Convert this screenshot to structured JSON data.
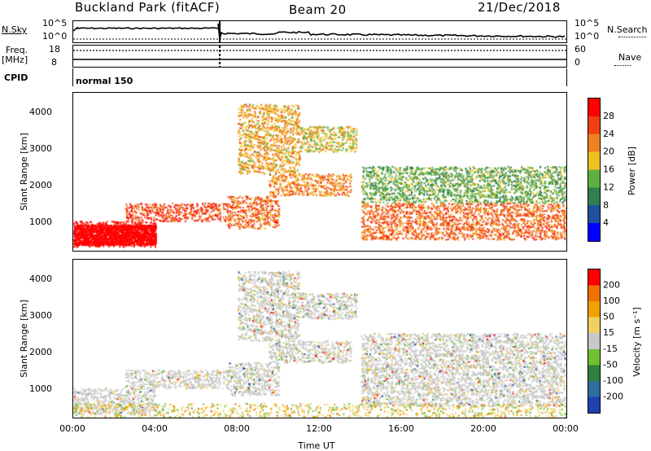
{
  "header": {
    "station": "Buckland Park (fitACF)",
    "beam": "Beam 20",
    "date": "21/Dec/2018"
  },
  "summary_panels": {
    "nsky_label": "N.Sky",
    "nsearch_label": "N.Search",
    "freq_label_top": "Freq.",
    "freq_label_unit": "[MHz]",
    "nave_label": "Nave",
    "cpid_label": "CPID",
    "noise_ticks": [
      "10^5",
      "10^0"
    ],
    "freq_ticks": [
      "18",
      "8"
    ],
    "nave_ticks": [
      "60",
      "0"
    ],
    "cpid_text": "normal 150"
  },
  "colors": {
    "power_scale": [
      "#0000ff",
      "#2050a0",
      "#308050",
      "#60b040",
      "#f0c020",
      "#f08020",
      "#f04010",
      "#ff0000"
    ],
    "velocity_scale": [
      "#2040b0",
      "#2d6fa0",
      "#308040",
      "#70c030",
      "#c8c8c8",
      "#f0d060",
      "#f0a000",
      "#f07000",
      "#ff0000"
    ],
    "ground_scatter": "#c8c8c8"
  },
  "chart_data": [
    {
      "type": "heatmap",
      "name": "power",
      "ylabel": "Slant Range [km]",
      "xlabel": "",
      "ylim": [
        180,
        4500
      ],
      "xlim": [
        0,
        24
      ],
      "x_ticks": [],
      "y_ticks": [
        1000,
        2000,
        3000,
        4000
      ],
      "colorbar": {
        "label": "Power [dB]",
        "ticks": [
          "4",
          "8",
          "12",
          "16",
          "20",
          "24",
          "28"
        ],
        "range": [
          0,
          32
        ]
      },
      "regions": [
        {
          "t": [
            0,
            4
          ],
          "r": [
            300,
            1000
          ],
          "level": 30
        },
        {
          "t": [
            2.5,
            7.5
          ],
          "r": [
            1000,
            1500
          ],
          "level": 26
        },
        {
          "t": [
            7.5,
            10
          ],
          "r": [
            800,
            1700
          ],
          "level": 24
        },
        {
          "t": [
            9.5,
            13.5
          ],
          "r": [
            1700,
            2300
          ],
          "level": 22
        },
        {
          "t": [
            8,
            11
          ],
          "r": [
            2300,
            4200
          ],
          "level": 20
        },
        {
          "t": [
            11,
            13.8
          ],
          "r": [
            2900,
            3600
          ],
          "level": 18
        },
        {
          "t": [
            14,
            24
          ],
          "r": [
            500,
            1500
          ],
          "level": 24
        },
        {
          "t": [
            14,
            24
          ],
          "r": [
            1500,
            2500
          ],
          "level": 13
        }
      ]
    },
    {
      "type": "heatmap",
      "name": "velocity",
      "ylabel": "Slant Range [km]",
      "xlabel": "Time UT",
      "ylim": [
        180,
        4500
      ],
      "xlim": [
        0,
        24
      ],
      "x_ticks": [
        "00:00",
        "04:00",
        "08:00",
        "12:00",
        "16:00",
        "20:00",
        "00:00"
      ],
      "y_ticks": [
        1000,
        2000,
        3000,
        4000
      ],
      "colorbar": {
        "label": "Velocity [m s⁻¹]",
        "ticks": [
          "200",
          "100",
          "50",
          "15",
          "-15",
          "-50",
          "-100",
          "-200"
        ],
        "range": [
          -250,
          250
        ]
      },
      "dominant_class": "ground scatter (-15 to 15 m/s)"
    }
  ]
}
